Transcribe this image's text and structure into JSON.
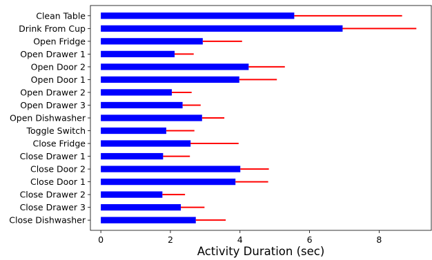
{
  "chart_data": {
    "type": "bar",
    "orientation": "horizontal",
    "xlabel": "Activity Duration (sec)",
    "ylabel": "",
    "xlim": [
      -0.3,
      9.5
    ],
    "xticks": [
      0,
      2,
      4,
      6,
      8
    ],
    "grid": false,
    "bar_color": "#0000ff",
    "error_color": "#ff0000",
    "categories": [
      "Clean Table",
      "Drink From Cup",
      "Open Fridge",
      "Open Drawer 1",
      "Open Door 2",
      "Open Door 1",
      "Open Drawer 2",
      "Open Drawer 3",
      "Open Dishwasher",
      "Toggle Switch",
      "Close Fridge",
      "Close Drawer 1",
      "Close Door 2",
      "Close Door 1",
      "Close Drawer 2",
      "Close Drawer 3",
      "Close Dishwasher"
    ],
    "values": [
      5.56,
      6.95,
      2.93,
      2.12,
      4.25,
      3.98,
      2.04,
      2.35,
      2.91,
      1.88,
      2.58,
      1.79,
      4.01,
      3.87,
      1.77,
      2.3,
      2.73
    ],
    "errors": [
      3.1,
      2.12,
      1.13,
      0.55,
      1.04,
      1.08,
      0.57,
      0.52,
      0.64,
      0.81,
      1.38,
      0.77,
      0.82,
      0.94,
      0.65,
      0.68,
      0.86
    ]
  }
}
